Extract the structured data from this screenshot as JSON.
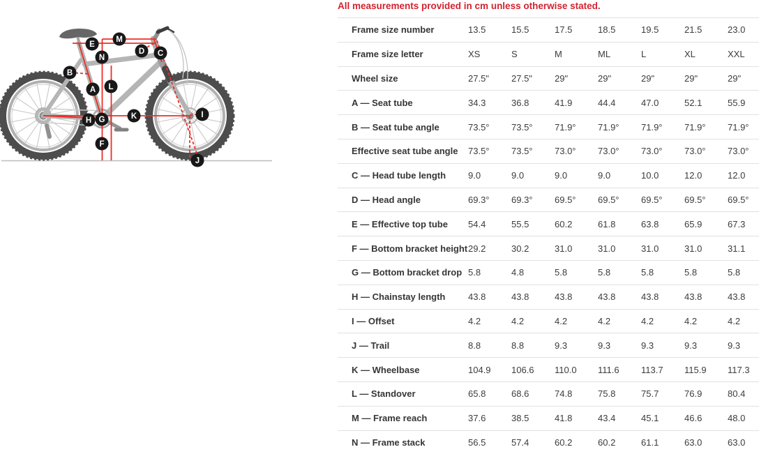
{
  "note": "All measurements provided in cm unless otherwise stated.",
  "colors": {
    "note_red": "#d2232e",
    "measurement_line_red": "#ee2d24",
    "label_circle_black": "#181818",
    "row_border_gray": "#e1e1e1",
    "frame_gray": "#b5b5b5",
    "tire_gray": "#4d4d4d"
  },
  "diagram": {
    "labels": [
      "A",
      "B",
      "C",
      "D",
      "E",
      "F",
      "G",
      "H",
      "I",
      "J",
      "K",
      "L",
      "M",
      "N"
    ]
  },
  "table": {
    "rows": [
      {
        "label": "Frame size number",
        "values": [
          "13.5",
          "15.5",
          "17.5",
          "18.5",
          "19.5",
          "21.5",
          "23.0"
        ]
      },
      {
        "label": "Frame size letter",
        "values": [
          "XS",
          "S",
          "M",
          "ML",
          "L",
          "XL",
          "XXL"
        ]
      },
      {
        "label": "Wheel size",
        "values": [
          "27.5\"",
          "27.5\"",
          "29\"",
          "29\"",
          "29\"",
          "29\"",
          "29\""
        ]
      },
      {
        "label": "A — Seat tube",
        "values": [
          "34.3",
          "36.8",
          "41.9",
          "44.4",
          "47.0",
          "52.1",
          "55.9"
        ]
      },
      {
        "label": "B — Seat tube angle",
        "values": [
          "73.5°",
          "73.5°",
          "71.9°",
          "71.9°",
          "71.9°",
          "71.9°",
          "71.9°"
        ]
      },
      {
        "label": "Effective seat tube angle",
        "values": [
          "73.5°",
          "73.5°",
          "73.0°",
          "73.0°",
          "73.0°",
          "73.0°",
          "73.0°"
        ]
      },
      {
        "label": "C — Head tube length",
        "values": [
          "9.0",
          "9.0",
          "9.0",
          "9.0",
          "10.0",
          "12.0",
          "12.0"
        ]
      },
      {
        "label": "D — Head angle",
        "values": [
          "69.3°",
          "69.3°",
          "69.5°",
          "69.5°",
          "69.5°",
          "69.5°",
          "69.5°"
        ]
      },
      {
        "label": "E — Effective top tube",
        "values": [
          "54.4",
          "55.5",
          "60.2",
          "61.8",
          "63.8",
          "65.9",
          "67.3"
        ]
      },
      {
        "label": "F — Bottom bracket height",
        "values": [
          "29.2",
          "30.2",
          "31.0",
          "31.0",
          "31.0",
          "31.0",
          "31.1"
        ]
      },
      {
        "label": "G — Bottom bracket drop",
        "values": [
          "5.8",
          "4.8",
          "5.8",
          "5.8",
          "5.8",
          "5.8",
          "5.8"
        ]
      },
      {
        "label": "H — Chainstay length",
        "values": [
          "43.8",
          "43.8",
          "43.8",
          "43.8",
          "43.8",
          "43.8",
          "43.8"
        ]
      },
      {
        "label": "I — Offset",
        "values": [
          "4.2",
          "4.2",
          "4.2",
          "4.2",
          "4.2",
          "4.2",
          "4.2"
        ]
      },
      {
        "label": "J — Trail",
        "values": [
          "8.8",
          "8.8",
          "9.3",
          "9.3",
          "9.3",
          "9.3",
          "9.3"
        ]
      },
      {
        "label": "K — Wheelbase",
        "values": [
          "104.9",
          "106.6",
          "110.0",
          "111.6",
          "113.7",
          "115.9",
          "117.3"
        ]
      },
      {
        "label": "L — Standover",
        "values": [
          "65.8",
          "68.6",
          "74.8",
          "75.8",
          "75.7",
          "76.9",
          "80.4"
        ]
      },
      {
        "label": "M — Frame reach",
        "values": [
          "37.6",
          "38.5",
          "41.8",
          "43.4",
          "45.1",
          "46.6",
          "48.0"
        ]
      },
      {
        "label": "N — Frame stack",
        "values": [
          "56.5",
          "57.4",
          "60.2",
          "60.2",
          "61.1",
          "63.0",
          "63.0"
        ]
      }
    ]
  }
}
